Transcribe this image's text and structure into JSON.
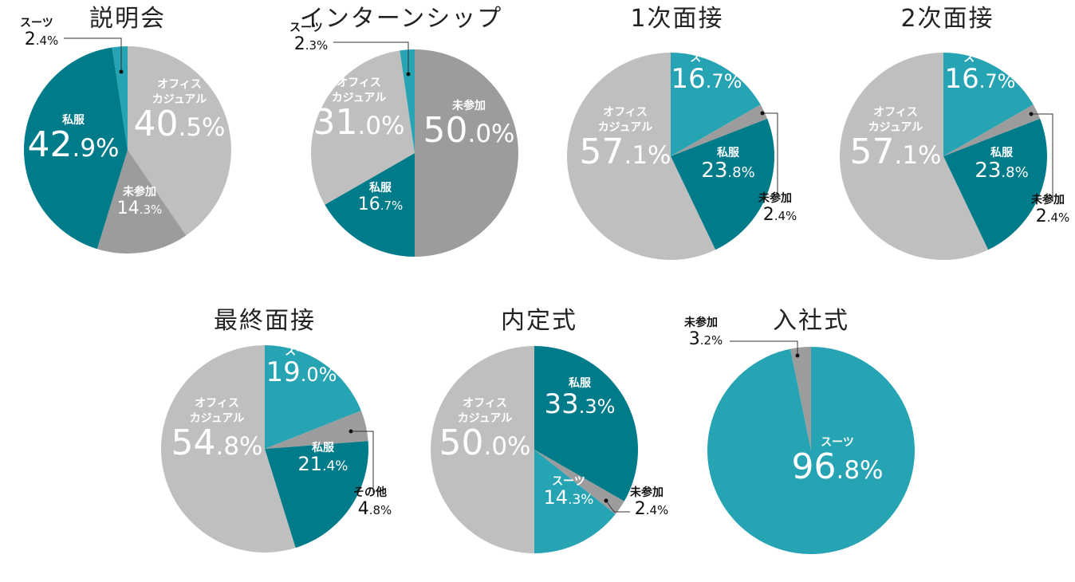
{
  "colors": {
    "suit": "#27a4b3",
    "office_casual": "#bfbfbf",
    "private_clothes": "#007b8a",
    "not_attended": "#9c9c9c",
    "other": "#9c9c9c"
  },
  "chart_data": [
    {
      "type": "pie",
      "title": "説明会",
      "slices": [
        {
          "label": "オフィス\nカジュアル",
          "value": 40.5,
          "color_key": "office_casual"
        },
        {
          "label": "未参加",
          "value": 14.3,
          "color_key": "not_attended"
        },
        {
          "label": "私服",
          "value": 42.9,
          "color_key": "private_clothes"
        },
        {
          "label": "スーツ",
          "value": 2.4,
          "color_key": "suit"
        }
      ]
    },
    {
      "type": "pie",
      "title": "インターンシップ",
      "slices": [
        {
          "label": "未参加",
          "value": 50.0,
          "color_key": "not_attended"
        },
        {
          "label": "私服",
          "value": 16.7,
          "color_key": "private_clothes"
        },
        {
          "label": "オフィス\nカジュアル",
          "value": 31.0,
          "color_key": "office_casual"
        },
        {
          "label": "スーツ",
          "value": 2.3,
          "color_key": "suit"
        }
      ]
    },
    {
      "type": "pie",
      "title": "1次面接",
      "slices": [
        {
          "label": "スーツ",
          "value": 16.7,
          "color_key": "suit"
        },
        {
          "label": "未参加",
          "value": 2.4,
          "color_key": "not_attended"
        },
        {
          "label": "私服",
          "value": 23.8,
          "color_key": "private_clothes"
        },
        {
          "label": "オフィス\nカジュアル",
          "value": 57.1,
          "color_key": "office_casual"
        }
      ]
    },
    {
      "type": "pie",
      "title": "2次面接",
      "slices": [
        {
          "label": "スーツ",
          "value": 16.7,
          "color_key": "suit"
        },
        {
          "label": "未参加",
          "value": 2.4,
          "color_key": "not_attended"
        },
        {
          "label": "私服",
          "value": 23.8,
          "color_key": "private_clothes"
        },
        {
          "label": "オフィス\nカジュアル",
          "value": 57.1,
          "color_key": "office_casual"
        }
      ]
    },
    {
      "type": "pie",
      "title": "最終面接",
      "slices": [
        {
          "label": "スーツ",
          "value": 19.0,
          "color_key": "suit"
        },
        {
          "label": "その他",
          "value": 4.8,
          "color_key": "other"
        },
        {
          "label": "私服",
          "value": 21.4,
          "color_key": "private_clothes"
        },
        {
          "label": "オフィス\nカジュアル",
          "value": 54.8,
          "color_key": "office_casual"
        }
      ]
    },
    {
      "type": "pie",
      "title": "内定式",
      "slices": [
        {
          "label": "私服",
          "value": 33.3,
          "color_key": "private_clothes"
        },
        {
          "label": "未参加",
          "value": 2.4,
          "color_key": "not_attended"
        },
        {
          "label": "スーツ",
          "value": 14.3,
          "color_key": "suit"
        },
        {
          "label": "オフィス\nカジュアル",
          "value": 50.0,
          "color_key": "office_casual"
        }
      ]
    },
    {
      "type": "pie",
      "title": "入社式",
      "slices": [
        {
          "label": "スーツ",
          "value": 96.8,
          "color_key": "suit"
        },
        {
          "label": "未参加",
          "value": 3.2,
          "color_key": "not_attended"
        }
      ]
    }
  ]
}
